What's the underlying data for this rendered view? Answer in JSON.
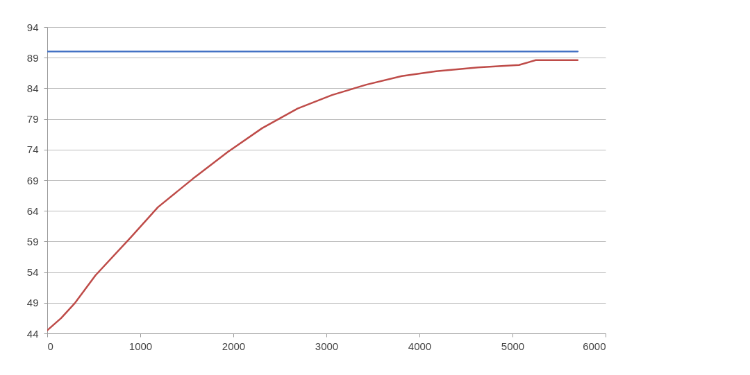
{
  "chart_data": {
    "type": "line",
    "xlim": [
      0,
      6000
    ],
    "xticks": [
      0,
      1000,
      2000,
      3000,
      4000,
      5000,
      6000
    ],
    "ylim": [
      44,
      94
    ],
    "yticks": [
      44,
      49,
      54,
      59,
      64,
      69,
      74,
      79,
      84,
      89,
      94
    ],
    "grid": "y",
    "series": [
      {
        "color": "#4472c4",
        "x": [
          0,
          5700
        ],
        "values": [
          90,
          90
        ]
      },
      {
        "color": "#be4b48",
        "x": [
          0,
          150,
          300,
          520,
          900,
          1190,
          1570,
          1940,
          2310,
          2690,
          3060,
          3430,
          3810,
          4180,
          4630,
          5070,
          5250,
          5700
        ],
        "values": [
          44.5,
          46.5,
          49,
          53.5,
          59.7,
          64.6,
          69.3,
          73.6,
          77.5,
          80.7,
          82.9,
          84.6,
          86,
          86.8,
          87.4,
          87.8,
          88.6,
          88.6
        ]
      }
    ]
  }
}
